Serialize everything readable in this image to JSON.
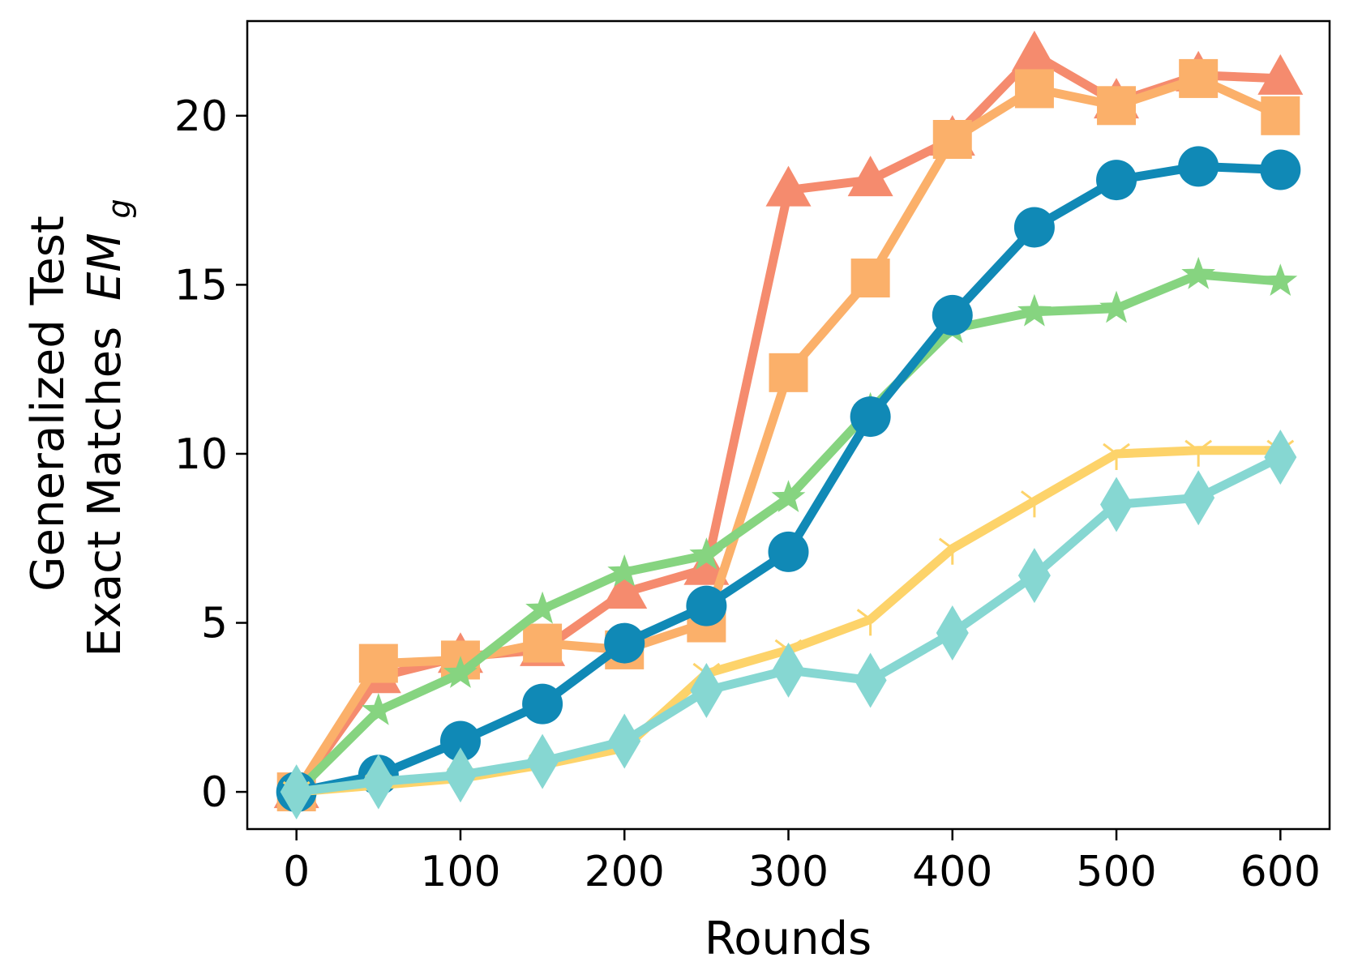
{
  "chart_data": {
    "type": "line",
    "xlabel": "Rounds",
    "ylabel_line1": "Generalized Test",
    "ylabel_line2": "Exact Matches",
    "ylabel_symbol": "EM",
    "ylabel_subscript": "g",
    "xlim": [
      -30,
      630
    ],
    "ylim": [
      -1.1,
      22.8
    ],
    "grid": false,
    "x": [
      0,
      50,
      100,
      150,
      200,
      250,
      300,
      350,
      400,
      450,
      500,
      550,
      600
    ],
    "xticks": [
      0,
      100,
      200,
      300,
      400,
      500,
      600
    ],
    "xtick_labels": [
      "0",
      "100",
      "200",
      "300",
      "400",
      "500",
      "600"
    ],
    "yticks": [
      0,
      5,
      10,
      15,
      20
    ],
    "ytick_labels": [
      "0",
      "5",
      "10",
      "15",
      "20"
    ],
    "series": [
      {
        "color": "#f58b6e",
        "marker": "triangle",
        "values": [
          0,
          3.4,
          4.0,
          4.2,
          5.9,
          6.6,
          17.8,
          18.1,
          19.3,
          21.8,
          20.4,
          21.2,
          21.1
        ]
      },
      {
        "color": "#fbb06a",
        "marker": "square",
        "values": [
          0,
          3.8,
          3.9,
          4.4,
          4.2,
          5.0,
          12.4,
          15.2,
          19.3,
          20.8,
          20.3,
          21.1,
          20.0
        ]
      },
      {
        "color": "#86d480",
        "marker": "star",
        "values": [
          0,
          2.4,
          3.5,
          5.4,
          6.5,
          7.0,
          8.7,
          11.3,
          13.7,
          14.2,
          14.3,
          15.3,
          15.1
        ]
      },
      {
        "color": "#1089b6",
        "marker": "circle",
        "values": [
          0,
          0.5,
          1.5,
          2.6,
          4.4,
          5.5,
          7.1,
          11.1,
          14.1,
          16.7,
          18.1,
          18.5,
          18.4
        ]
      },
      {
        "color": "#fdd36a",
        "marker": "tri_down",
        "values": [
          0,
          0.2,
          0.4,
          0.8,
          1.3,
          3.5,
          4.2,
          5.1,
          7.2,
          8.6,
          10.0,
          10.1,
          10.1
        ]
      },
      {
        "color": "#86d7d2",
        "marker": "thin_diamond",
        "values": [
          0,
          0.3,
          0.5,
          0.9,
          1.5,
          3.0,
          3.6,
          3.3,
          4.7,
          6.4,
          8.5,
          8.7,
          9.9
        ]
      }
    ]
  }
}
